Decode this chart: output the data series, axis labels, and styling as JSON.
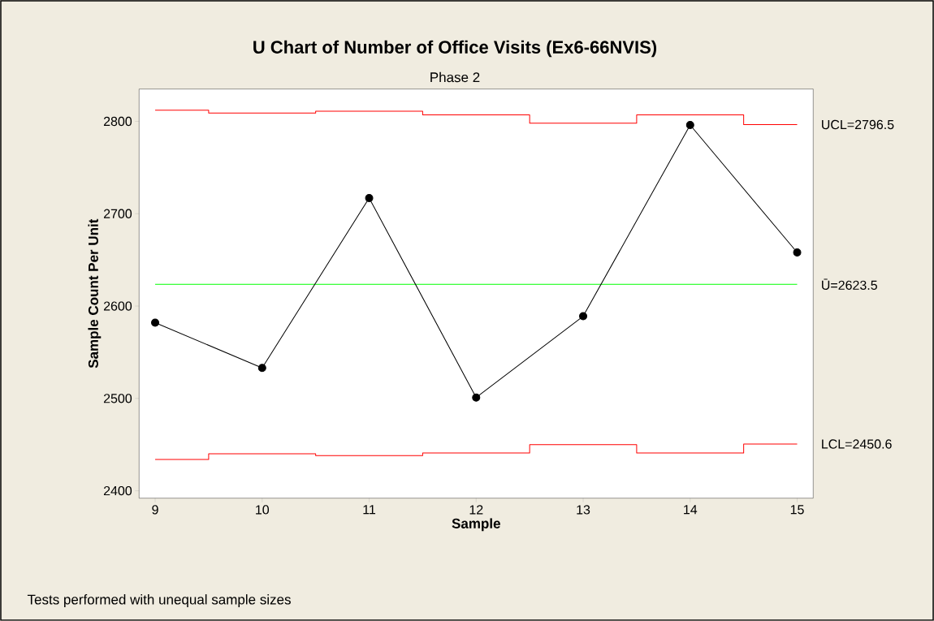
{
  "chart_data": {
    "type": "line",
    "title": "U Chart of Number of Office Visits (Ex6-66NVIS)",
    "subtitle": "Phase 2",
    "xlabel": "Sample",
    "ylabel": "Sample Count Per Unit",
    "x": [
      9,
      10,
      11,
      12,
      13,
      14,
      15
    ],
    "series": [
      {
        "color": "#000000",
        "marker": "circle",
        "values": [
          2582,
          2533,
          2717,
          2501,
          2589,
          2796,
          2658
        ]
      },
      {
        "name": "UCL=2796.5",
        "type": "step",
        "marker": "none",
        "color": "#ff0000",
        "values": [
          2812,
          2809,
          2811,
          2807,
          2798,
          2807,
          2796.5
        ]
      },
      {
        "name": "LCL=2450.6",
        "type": "step",
        "marker": "none",
        "color": "#ff0000",
        "values": [
          2434,
          2440,
          2438,
          2441,
          2450,
          2441,
          2450.6
        ]
      }
    ],
    "ref_lines": [
      {
        "axis": "y",
        "value": 2623.5,
        "label": "Ū=2623.5",
        "color": "#00ff00"
      }
    ],
    "annotations": [
      "Tests performed with unequal sample sizes"
    ],
    "xlim": [
      8.85,
      15.15
    ],
    "ylim": [
      2392,
      2835
    ],
    "xticks": [
      9,
      10,
      11,
      12,
      13,
      14,
      15
    ],
    "yticks": [
      2400,
      2500,
      2600,
      2700,
      2800
    ],
    "grid": false
  }
}
